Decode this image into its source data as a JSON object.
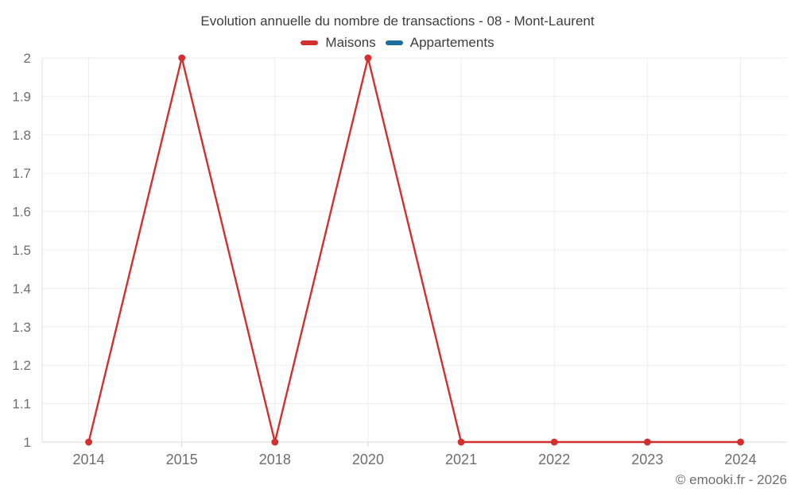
{
  "chart_data": {
    "type": "line",
    "title": "Evolution annuelle du nombre de transactions - 08 - Mont-Laurent",
    "categories": [
      "2014",
      "2015",
      "2018",
      "2020",
      "2021",
      "2022",
      "2023",
      "2024"
    ],
    "series": [
      {
        "name": "Maisons",
        "color": "#d32f2f",
        "values": [
          1,
          2,
          1,
          2,
          1,
          1,
          1,
          1
        ]
      },
      {
        "name": "Appartements",
        "color": "#1a6d9e",
        "values": []
      }
    ],
    "ylim": [
      1,
      2
    ],
    "y_ticks": {
      "values": [
        1,
        1.1,
        1.2,
        1.3,
        1.4,
        1.5,
        1.6,
        1.7,
        1.8,
        1.9,
        2
      ],
      "labels": [
        "1",
        "1.1",
        "1.2",
        "1.3",
        "1.4",
        "1.5",
        "1.6",
        "1.7",
        "1.8",
        "1.9",
        "2"
      ]
    },
    "grid": true,
    "legend_position": "top",
    "colors": {
      "grid": "#ededed",
      "axis_line": "#e2e2e2",
      "baseline": "#d8d8d8",
      "tick": "#d8d8d8",
      "tick_label": "#6e6e6e",
      "title_text": "#3d3d3d"
    }
  },
  "footer": {
    "copyright": "© emooki.fr - 2026"
  }
}
